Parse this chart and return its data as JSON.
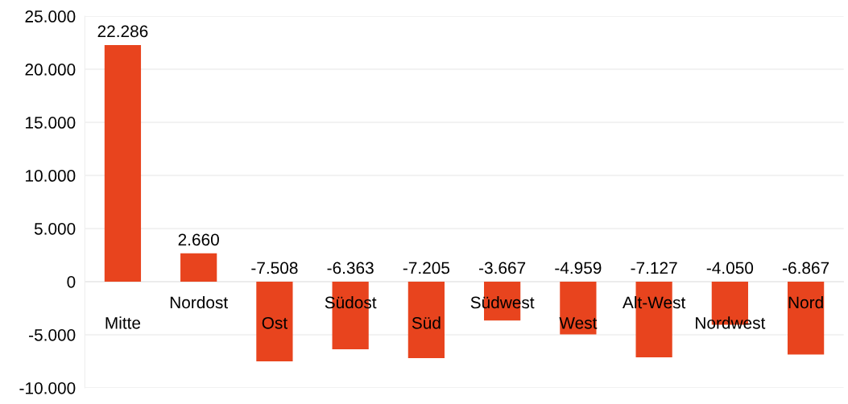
{
  "chart_data": {
    "type": "bar",
    "categories": [
      "Mitte",
      "Nordost",
      "Ost",
      "Südost",
      "Süd",
      "Südwest",
      "West",
      "Alt-West",
      "Nordwest",
      "Nord"
    ],
    "values": [
      22286,
      2660,
      -7508,
      -6363,
      -7205,
      -3667,
      -4959,
      -7127,
      -4050,
      -6867
    ],
    "value_labels": [
      "22.286",
      "2.660",
      "-7.508",
      "-6.363",
      "-7.205",
      "-3.667",
      "-4.959",
      "-7.127",
      "-4.050",
      "-6.867"
    ],
    "color": "#e8441e",
    "ylim": [
      -10000,
      25000
    ],
    "yticks": [
      {
        "value": -10000,
        "label": "-10.000"
      },
      {
        "value": -5000,
        "label": "-5.000"
      },
      {
        "value": 0,
        "label": "0"
      },
      {
        "value": 5000,
        "label": "5.000"
      },
      {
        "value": 10000,
        "label": "10.000"
      },
      {
        "value": 15000,
        "label": "15.000"
      },
      {
        "value": 20000,
        "label": "20.000"
      },
      {
        "value": 25000,
        "label": "25.000"
      }
    ],
    "grid": "y",
    "legend": false
  }
}
